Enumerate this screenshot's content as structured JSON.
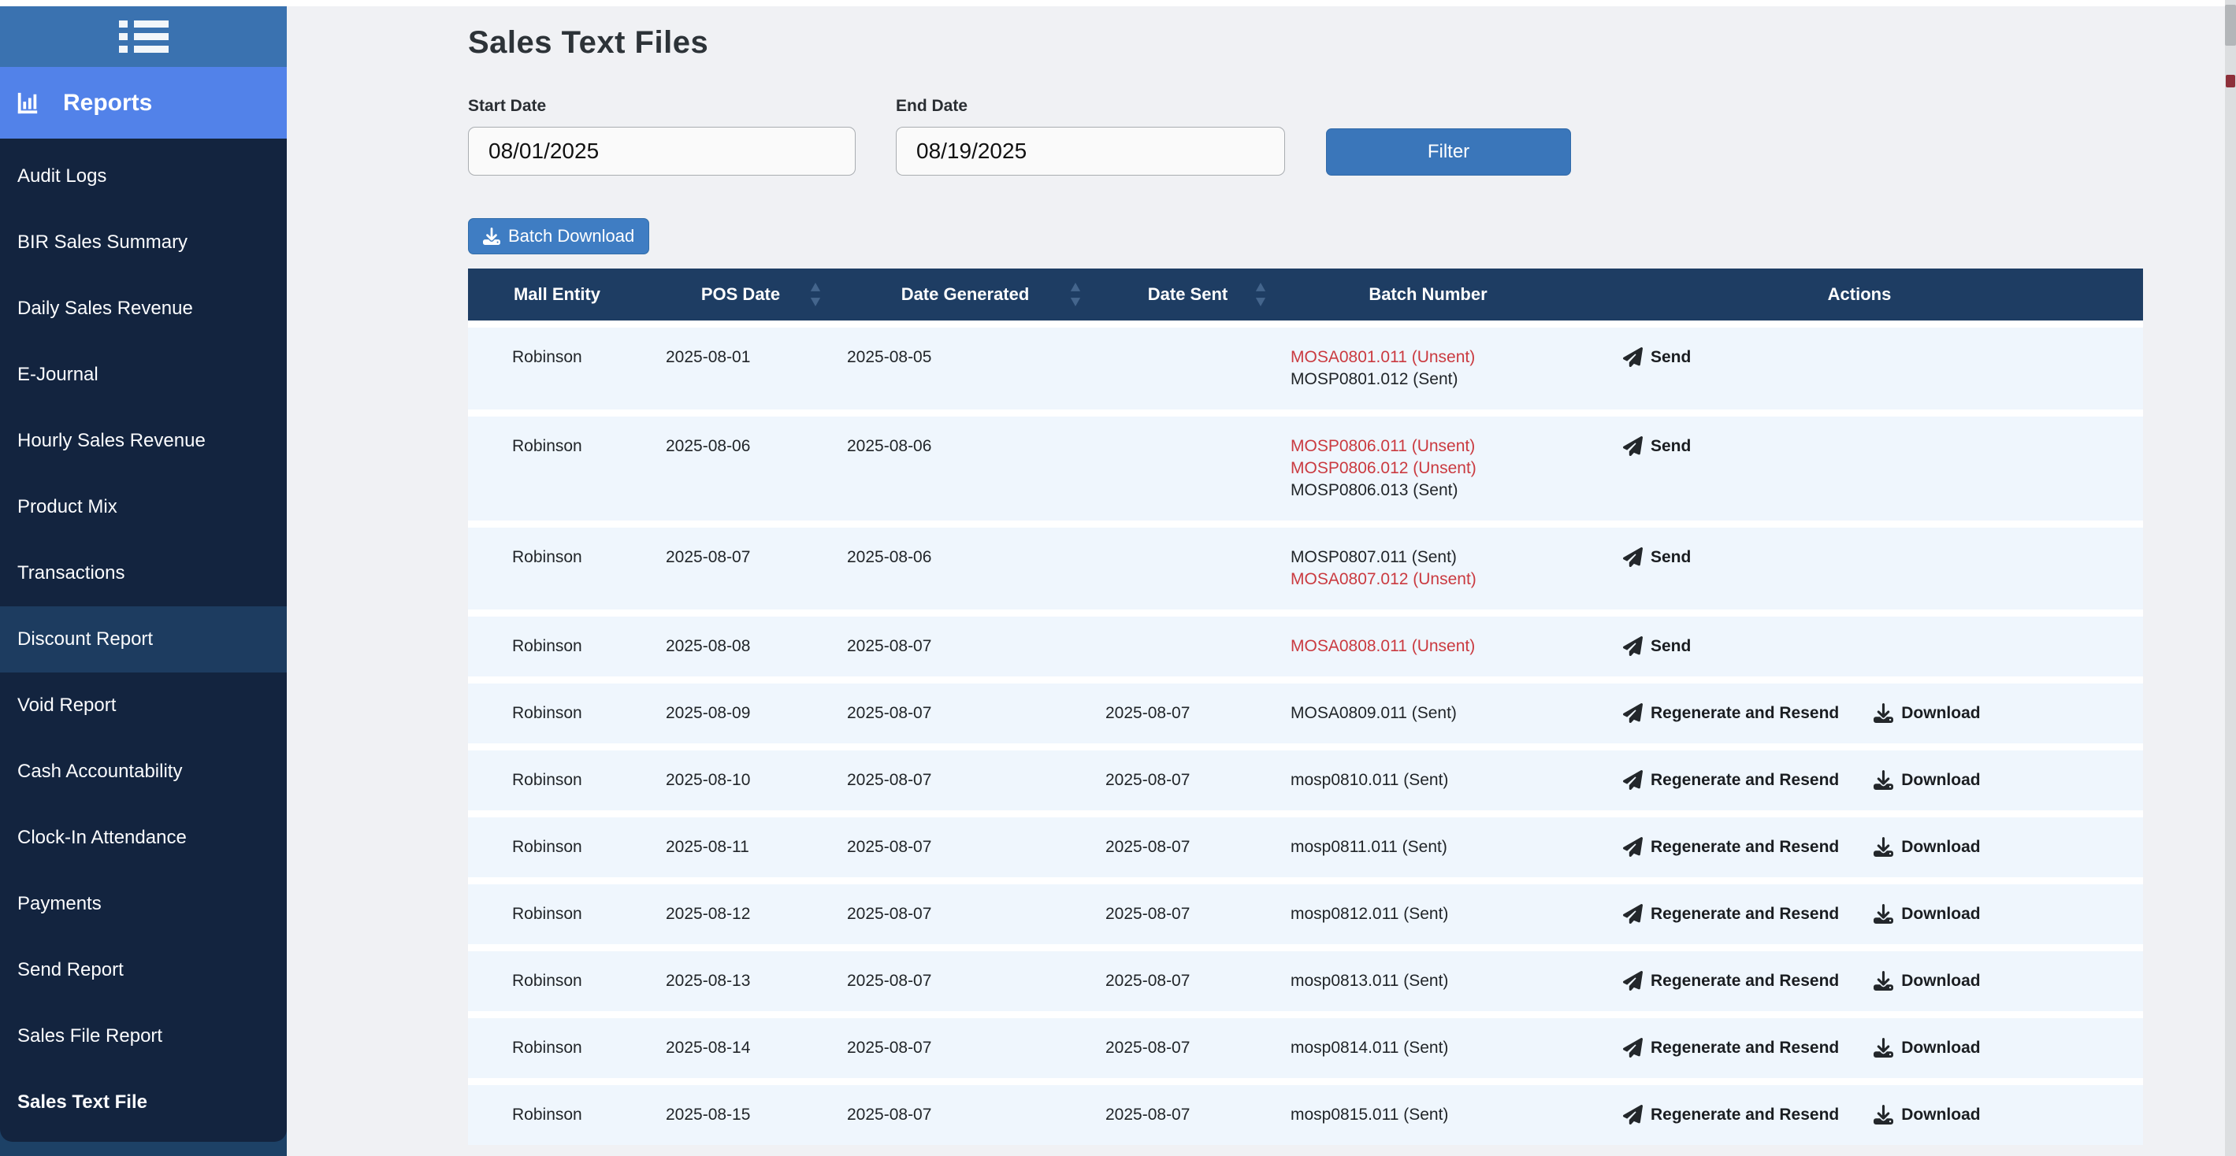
{
  "colors": {
    "sidebar_navy": "#13243f",
    "sidebar_strip": "#1d4166",
    "topbar_blue": "#3a72b0",
    "reports_active_blue": "#5282e9",
    "highlight_navy": "#1d3c60",
    "table_header_navy": "#1e3d63",
    "filter_button_blue": "#3a76ba",
    "batch_button_blue": "#3f7dc3",
    "row_bg": "#eff6fd",
    "unsent_red": "#ca3a40",
    "main_bg": "#f0f1f4"
  },
  "sidebar": {
    "menu_toggle_icon": "list-icon",
    "reports": {
      "label": "Reports",
      "icon": "bar-chart-icon"
    },
    "items": [
      {
        "label": "Audit Logs"
      },
      {
        "label": "BIR Sales Summary"
      },
      {
        "label": "Daily Sales Revenue"
      },
      {
        "label": "E-Journal"
      },
      {
        "label": "Hourly Sales Revenue"
      },
      {
        "label": "Product Mix"
      },
      {
        "label": "Transactions"
      },
      {
        "label": "Discount Report",
        "highlighted": true
      },
      {
        "label": "Void Report"
      },
      {
        "label": "Cash Accountability"
      },
      {
        "label": "Clock-In Attendance"
      },
      {
        "label": "Payments"
      },
      {
        "label": "Send Report"
      },
      {
        "label": "Sales File Report"
      },
      {
        "label": "Sales Text File",
        "active": true
      }
    ]
  },
  "main": {
    "title": "Sales Text Files",
    "filters": {
      "start_date": {
        "label": "Start Date",
        "value": "08/01/2025"
      },
      "end_date": {
        "label": "End Date",
        "value": "08/19/2025"
      },
      "filter_button": "Filter"
    },
    "batch_download_button": "Batch Download",
    "table": {
      "columns": [
        {
          "label": "Mall Entity",
          "sortable": false
        },
        {
          "label": "POS Date",
          "sortable": true
        },
        {
          "label": "Date Generated",
          "sortable": true
        },
        {
          "label": "Date Sent",
          "sortable": true
        },
        {
          "label": "Batch Number",
          "sortable": false
        },
        {
          "label": "Actions",
          "sortable": false
        }
      ],
      "rows": [
        {
          "mall_entity": "Robinson",
          "pos_date": "2025-08-01",
          "date_generated": "2025-08-05",
          "date_sent": "",
          "batches": [
            {
              "label": "MOSA0801.011 (Unsent)",
              "unsent": true
            },
            {
              "label": "MOSP0801.012 (Sent)",
              "unsent": false
            }
          ],
          "actions": [
            {
              "label": "Send",
              "icon": "paper-plane-icon"
            }
          ]
        },
        {
          "mall_entity": "Robinson",
          "pos_date": "2025-08-06",
          "date_generated": "2025-08-06",
          "date_sent": "",
          "batches": [
            {
              "label": "MOSP0806.011 (Unsent)",
              "unsent": true
            },
            {
              "label": "MOSP0806.012 (Unsent)",
              "unsent": true
            },
            {
              "label": "MOSP0806.013 (Sent)",
              "unsent": false
            }
          ],
          "actions": [
            {
              "label": "Send",
              "icon": "paper-plane-icon"
            }
          ]
        },
        {
          "mall_entity": "Robinson",
          "pos_date": "2025-08-07",
          "date_generated": "2025-08-06",
          "date_sent": "",
          "batches": [
            {
              "label": "MOSP0807.011 (Sent)",
              "unsent": false
            },
            {
              "label": "MOSA0807.012 (Unsent)",
              "unsent": true
            }
          ],
          "actions": [
            {
              "label": "Send",
              "icon": "paper-plane-icon"
            }
          ]
        },
        {
          "mall_entity": "Robinson",
          "pos_date": "2025-08-08",
          "date_generated": "2025-08-07",
          "date_sent": "",
          "batches": [
            {
              "label": "MOSA0808.011 (Unsent)",
              "unsent": true
            }
          ],
          "actions": [
            {
              "label": "Send",
              "icon": "paper-plane-icon"
            }
          ]
        },
        {
          "mall_entity": "Robinson",
          "pos_date": "2025-08-09",
          "date_generated": "2025-08-07",
          "date_sent": "2025-08-07",
          "batches": [
            {
              "label": "MOSA0809.011 (Sent)",
              "unsent": false
            }
          ],
          "actions": [
            {
              "label": "Regenerate and Resend",
              "icon": "paper-plane-icon"
            },
            {
              "label": "Download",
              "icon": "download-icon"
            }
          ]
        },
        {
          "mall_entity": "Robinson",
          "pos_date": "2025-08-10",
          "date_generated": "2025-08-07",
          "date_sent": "2025-08-07",
          "batches": [
            {
              "label": "mosp0810.011 (Sent)",
              "unsent": false
            }
          ],
          "actions": [
            {
              "label": "Regenerate and Resend",
              "icon": "paper-plane-icon"
            },
            {
              "label": "Download",
              "icon": "download-icon"
            }
          ]
        },
        {
          "mall_entity": "Robinson",
          "pos_date": "2025-08-11",
          "date_generated": "2025-08-07",
          "date_sent": "2025-08-07",
          "batches": [
            {
              "label": "mosp0811.011 (Sent)",
              "unsent": false
            }
          ],
          "actions": [
            {
              "label": "Regenerate and Resend",
              "icon": "paper-plane-icon"
            },
            {
              "label": "Download",
              "icon": "download-icon"
            }
          ]
        },
        {
          "mall_entity": "Robinson",
          "pos_date": "2025-08-12",
          "date_generated": "2025-08-07",
          "date_sent": "2025-08-07",
          "batches": [
            {
              "label": "mosp0812.011 (Sent)",
              "unsent": false
            }
          ],
          "actions": [
            {
              "label": "Regenerate and Resend",
              "icon": "paper-plane-icon"
            },
            {
              "label": "Download",
              "icon": "download-icon"
            }
          ]
        },
        {
          "mall_entity": "Robinson",
          "pos_date": "2025-08-13",
          "date_generated": "2025-08-07",
          "date_sent": "2025-08-07",
          "batches": [
            {
              "label": "mosp0813.011 (Sent)",
              "unsent": false
            }
          ],
          "actions": [
            {
              "label": "Regenerate and Resend",
              "icon": "paper-plane-icon"
            },
            {
              "label": "Download",
              "icon": "download-icon"
            }
          ]
        },
        {
          "mall_entity": "Robinson",
          "pos_date": "2025-08-14",
          "date_generated": "2025-08-07",
          "date_sent": "2025-08-07",
          "batches": [
            {
              "label": "mosp0814.011 (Sent)",
              "unsent": false
            }
          ],
          "actions": [
            {
              "label": "Regenerate and Resend",
              "icon": "paper-plane-icon"
            },
            {
              "label": "Download",
              "icon": "download-icon"
            }
          ]
        },
        {
          "mall_entity": "Robinson",
          "pos_date": "2025-08-15",
          "date_generated": "2025-08-07",
          "date_sent": "2025-08-07",
          "batches": [
            {
              "label": "mosp0815.011 (Sent)",
              "unsent": false
            }
          ],
          "actions": [
            {
              "label": "Regenerate and Resend",
              "icon": "paper-plane-icon"
            },
            {
              "label": "Download",
              "icon": "download-icon"
            }
          ]
        }
      ]
    }
  }
}
